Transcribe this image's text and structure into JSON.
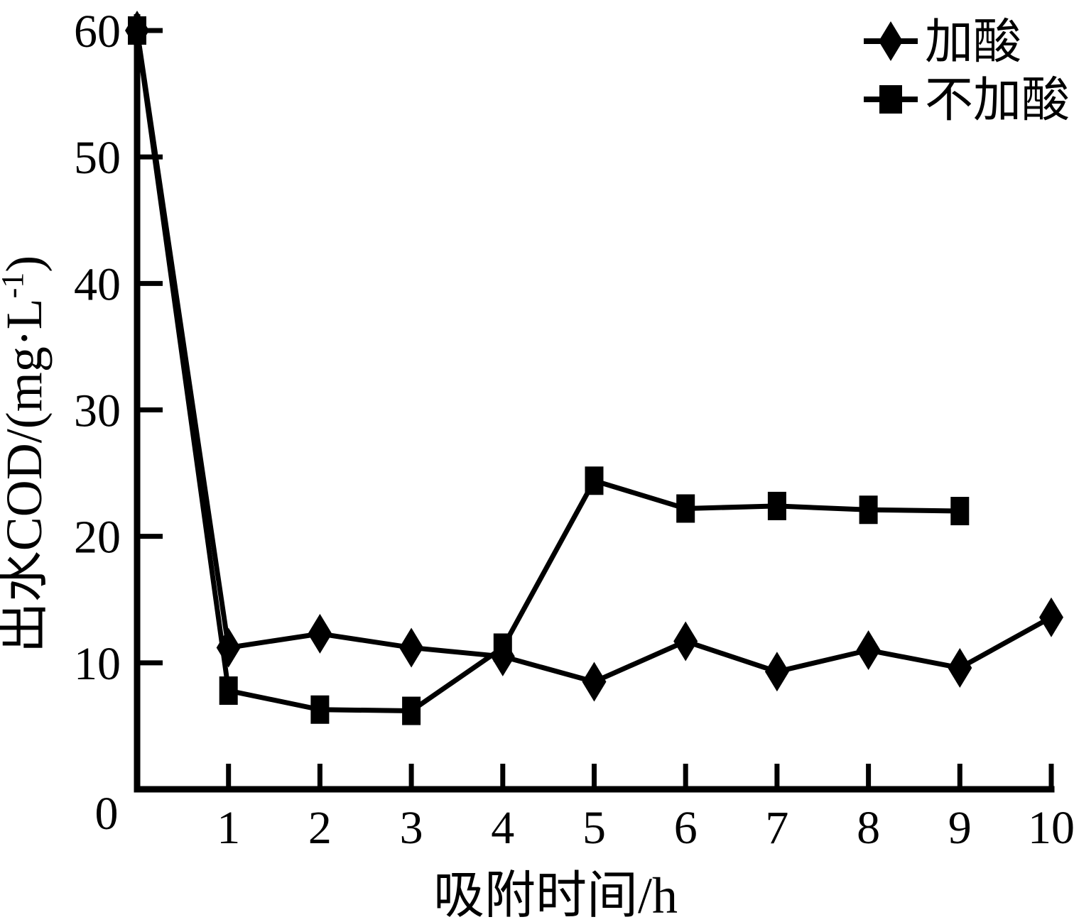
{
  "colors": {
    "foreground": "#000000",
    "background": "#ffffff"
  },
  "chart_data": {
    "type": "line",
    "title": "",
    "xlabel": "吸附时间/h",
    "ylabel": "出水COD/(mg·L⁻¹)",
    "ylabel_parts": {
      "base": "出水COD/(mg·L",
      "sup": "-1",
      "end": ")"
    },
    "origin_label": "0",
    "x_ticks": [
      1,
      2,
      3,
      4,
      5,
      6,
      7,
      8,
      9,
      10
    ],
    "y_ticks": [
      0,
      10,
      20,
      30,
      40,
      50,
      60
    ],
    "xlim": [
      0,
      10
    ],
    "ylim": [
      0,
      62
    ],
    "grid": false,
    "legend_position": "top-right",
    "series": [
      {
        "name": "加酸",
        "marker": "diamond",
        "color": "#000000",
        "x": [
          0,
          1,
          2,
          3,
          4,
          5,
          6,
          7,
          8,
          9,
          10
        ],
        "values": [
          60,
          11.2,
          12.3,
          11.2,
          10.5,
          8.5,
          11.7,
          9.3,
          11.0,
          9.6,
          13.6
        ]
      },
      {
        "name": "不加酸",
        "marker": "square",
        "color": "#000000",
        "x": [
          0,
          1,
          2,
          3,
          4,
          5,
          6,
          7,
          8,
          9
        ],
        "values": [
          60,
          7.8,
          6.3,
          6.2,
          11.2,
          24.4,
          22.2,
          22.4,
          22.1,
          22.0
        ]
      }
    ]
  }
}
